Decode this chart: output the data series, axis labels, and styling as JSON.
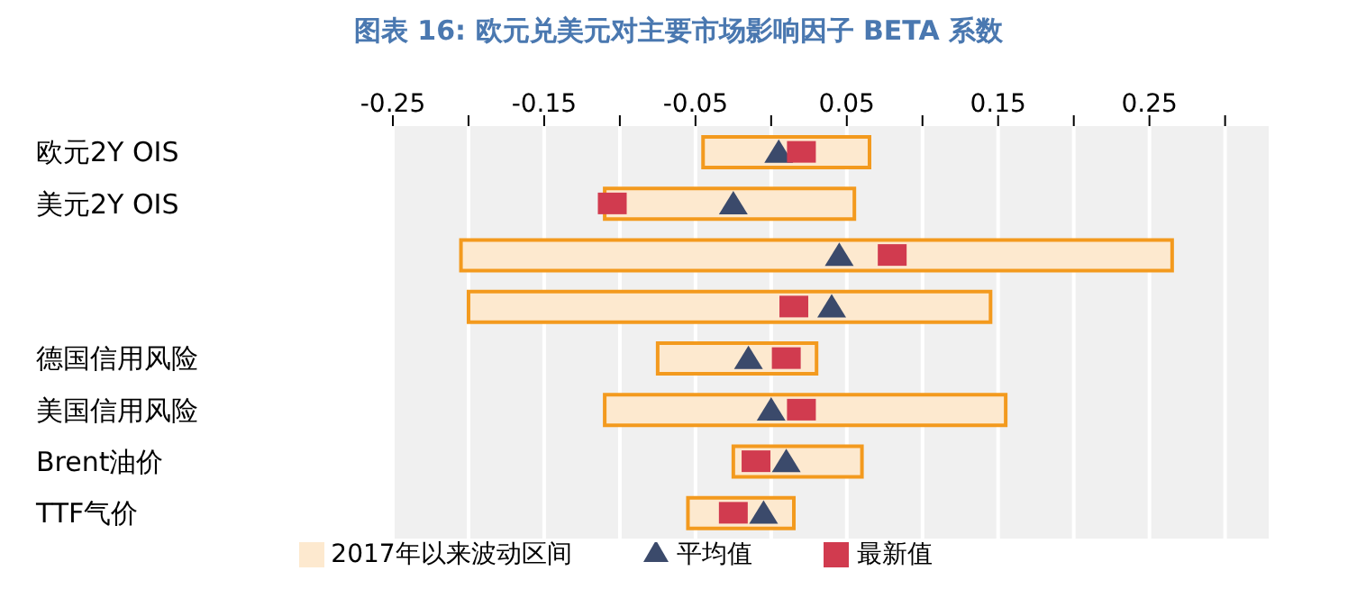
{
  "chart_data": {
    "type": "bar",
    "orientation": "horizontal",
    "title": "图表 16: 欧元兑美元对主要市场影响因子 BETA 系数",
    "categories": [
      "欧元2Y OIS",
      "美元2Y OIS",
      null,
      null,
      "德国信用风险",
      "美国信用风险",
      "Brent油价",
      "TTF气价"
    ],
    "series": [
      {
        "name": "2017年以来波动区间",
        "color": "#fde9cf",
        "base": [
          -0.045,
          -0.11,
          -0.205,
          -0.2,
          -0.075,
          -0.11,
          -0.025,
          -0.055
        ],
        "values": [
          0.11,
          0.165,
          0.47,
          0.345,
          0.105,
          0.265,
          0.085,
          0.07
        ]
      },
      {
        "name": "平均值",
        "type": "scatter",
        "marker": "triangle",
        "color": "#3b4a6b",
        "values": [
          0.005,
          -0.025,
          0.045,
          0.04,
          -0.015,
          0.0,
          0.01,
          -0.005
        ]
      },
      {
        "name": "最新值",
        "type": "scatter",
        "marker": "square",
        "color": "#d13b4f",
        "values": [
          0.02,
          -0.105,
          0.08,
          0.015,
          0.01,
          0.02,
          -0.01,
          -0.025
        ]
      }
    ],
    "xlim": [
      -0.25,
      0.33
    ],
    "xticks": [
      -0.25,
      {
        "value": -0.2,
        "label": null
      },
      -0.15,
      {
        "value": -0.1,
        "label": null
      },
      -0.05,
      {
        "value": 0,
        "label": null
      },
      0.05,
      {
        "value": 0.1,
        "label": null
      },
      0.15,
      {
        "value": 0.2,
        "label": null
      },
      0.25,
      {
        "value": 0.3,
        "label": null
      }
    ],
    "grid": "x",
    "legend": "bottom"
  }
}
